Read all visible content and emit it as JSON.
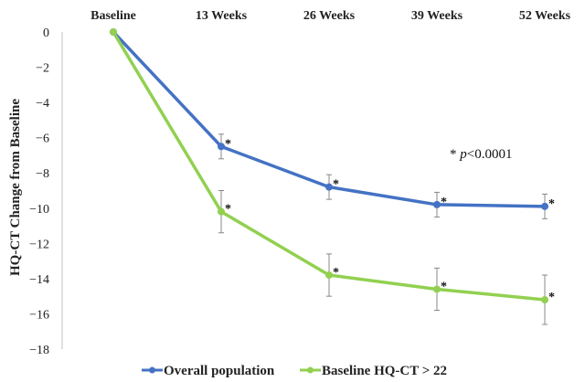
{
  "chart_data": {
    "type": "line",
    "categories": [
      "Baseline",
      "13 Weeks",
      "26 Weeks",
      "39 Weeks",
      "52 Weeks"
    ],
    "ylabel": "HQ-CT Change from Baseline",
    "ylim": [
      -18,
      0
    ],
    "yticks": [
      0,
      -2,
      -4,
      -6,
      -8,
      -10,
      -12,
      -14,
      -16,
      -18
    ],
    "ytick_labels": [
      "0",
      "−2",
      "−4",
      "−6",
      "−8",
      "−10",
      "−12",
      "−14",
      "−16",
      "−18"
    ],
    "x_axis_position": "top",
    "legend_position": "bottom",
    "grid": false,
    "series": [
      {
        "name": "Overall population",
        "color": "#4472C4",
        "values": [
          0,
          -6.5,
          -8.8,
          -9.8,
          -9.9
        ],
        "error": [
          0,
          0.7,
          0.7,
          0.7,
          0.7
        ],
        "significance": [
          false,
          true,
          true,
          true,
          true
        ]
      },
      {
        "name": "Baseline HQ-CT > 22",
        "color": "#92D050",
        "values": [
          0,
          -10.2,
          -13.8,
          -14.6,
          -15.2
        ],
        "error": [
          0,
          1.2,
          1.2,
          1.2,
          1.4
        ],
        "significance": [
          false,
          true,
          true,
          true,
          true
        ]
      }
    ],
    "significance_marker": "*",
    "annotation": {
      "prefix": "* ",
      "italic": "p",
      "suffix": "<0.0001"
    }
  }
}
